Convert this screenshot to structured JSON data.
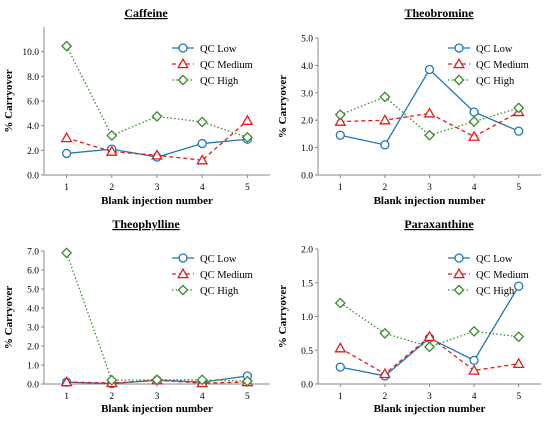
{
  "chart_data": [
    {
      "type": "line",
      "title": "Caffeine",
      "xlabel": "Blank injection number",
      "ylabel": "% Carryover",
      "x": [
        1,
        2,
        3,
        4,
        5
      ],
      "ylim": [
        0,
        12
      ],
      "yticks": [
        "0.0",
        "2.0",
        "4.0",
        "6.0",
        "8.0",
        "10.0"
      ],
      "yticks_values": [
        0,
        2,
        4,
        6,
        8,
        10
      ],
      "grid": false,
      "legend": "top-right",
      "series": [
        {
          "name": "QC Low",
          "values": [
            1.75,
            2.1,
            1.45,
            2.55,
            2.9
          ],
          "color": "#1f77b4",
          "style": "solid",
          "marker": "circle"
        },
        {
          "name": "QC Medium",
          "values": [
            3.0,
            1.9,
            1.6,
            1.2,
            4.4
          ],
          "color": "#e31a1c",
          "style": "dashed",
          "marker": "triangle"
        },
        {
          "name": "QC High",
          "values": [
            10.45,
            3.2,
            4.75,
            4.3,
            3.05
          ],
          "color": "#3a8a2c",
          "style": "dotted",
          "marker": "diamond"
        }
      ]
    },
    {
      "type": "line",
      "title": "Theobromine",
      "xlabel": "Blank injection number",
      "ylabel": "% Carryover",
      "x": [
        1,
        2,
        3,
        4,
        5
      ],
      "ylim": [
        0,
        5
      ],
      "yticks": [
        "0.0",
        "1.0",
        "2.0",
        "3.0",
        "4.0",
        "5.0"
      ],
      "yticks_values": [
        0,
        1,
        2,
        3,
        4,
        5
      ],
      "grid": false,
      "legend": "top-right",
      "series": [
        {
          "name": "QC Low",
          "values": [
            1.45,
            1.1,
            3.85,
            2.3,
            1.6
          ],
          "color": "#1f77b4",
          "style": "solid",
          "marker": "circle"
        },
        {
          "name": "QC Medium",
          "values": [
            1.95,
            2.0,
            2.25,
            1.4,
            2.3
          ],
          "color": "#e31a1c",
          "style": "dashed",
          "marker": "triangle"
        },
        {
          "name": "QC High",
          "values": [
            2.2,
            2.85,
            1.45,
            1.95,
            2.45
          ],
          "color": "#3a8a2c",
          "style": "dotted",
          "marker": "diamond"
        }
      ]
    },
    {
      "type": "line",
      "title": "Theophylline",
      "xlabel": "Blank injection number",
      "ylabel": "% Carryover",
      "x": [
        1,
        2,
        3,
        4,
        5
      ],
      "ylim": [
        0,
        7
      ],
      "yticks": [
        "0.0",
        "1.0",
        "2.0",
        "3.0",
        "4.0",
        "5.0",
        "6.0",
        "7.0"
      ],
      "yticks_values": [
        0,
        1,
        2,
        3,
        4,
        5,
        6,
        7
      ],
      "grid": false,
      "legend": "top-right",
      "series": [
        {
          "name": "QC Low",
          "values": [
            0.1,
            0.02,
            0.2,
            0.1,
            0.42
          ],
          "color": "#1f77b4",
          "style": "solid",
          "marker": "circle"
        },
        {
          "name": "QC Medium",
          "values": [
            0.1,
            0.05,
            0.2,
            0.05,
            0.1
          ],
          "color": "#e31a1c",
          "style": "dashed",
          "marker": "triangle"
        },
        {
          "name": "QC High",
          "values": [
            6.9,
            0.2,
            0.22,
            0.22,
            0.15
          ],
          "color": "#3a8a2c",
          "style": "dotted",
          "marker": "diamond"
        }
      ]
    },
    {
      "type": "line",
      "title": "Paraxanthine",
      "xlabel": "Blank injection number",
      "ylabel": "% Carryover",
      "x": [
        1,
        2,
        3,
        4,
        5
      ],
      "ylim": [
        0,
        2
      ],
      "yticks": [
        "0.0",
        "0.5",
        "1.0",
        "1.5",
        "2.0"
      ],
      "yticks_values": [
        0,
        0.5,
        1,
        1.5,
        2
      ],
      "grid": false,
      "legend": "top-right",
      "series": [
        {
          "name": "QC Low",
          "values": [
            0.25,
            0.12,
            0.68,
            0.35,
            1.45
          ],
          "color": "#1f77b4",
          "style": "solid",
          "marker": "circle"
        },
        {
          "name": "QC Medium",
          "values": [
            0.53,
            0.15,
            0.7,
            0.2,
            0.3
          ],
          "color": "#e31a1c",
          "style": "dashed",
          "marker": "triangle"
        },
        {
          "name": "QC High",
          "values": [
            1.2,
            0.75,
            0.55,
            0.78,
            0.7
          ],
          "color": "#3a8a2c",
          "style": "dotted",
          "marker": "diamond"
        }
      ]
    }
  ]
}
